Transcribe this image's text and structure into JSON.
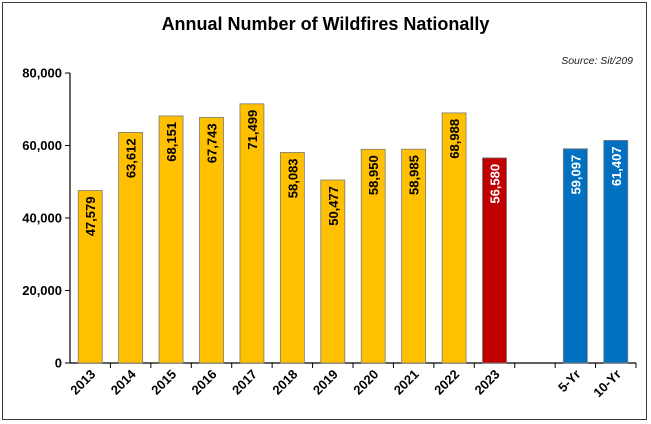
{
  "chart_data": {
    "type": "bar",
    "title": "Annual Number of Wildfires Nationally",
    "source_note": "Source: Sit/209",
    "xlabel": "",
    "ylabel": "",
    "ylim": [
      0,
      80000
    ],
    "yticks": [
      0,
      20000,
      40000,
      60000,
      80000
    ],
    "ytick_labels": [
      "0",
      "20,000",
      "40,000",
      "60,000",
      "80,000"
    ],
    "grid": false,
    "categories": [
      "2013",
      "2014",
      "2015",
      "2016",
      "2017",
      "2018",
      "2019",
      "2020",
      "2021",
      "2022",
      "2023",
      "",
      "5-Yr",
      "10-Yr"
    ],
    "values": [
      47579,
      63612,
      68151,
      67743,
      71499,
      58083,
      50477,
      58950,
      58985,
      68988,
      56580,
      null,
      59097,
      61407
    ],
    "value_labels": [
      "47,579",
      "63,612",
      "68,151",
      "67,743",
      "71,499",
      "58,083",
      "50,477",
      "58,950",
      "58,985",
      "68,988",
      "56,580",
      "",
      "59,097",
      "61,407"
    ],
    "bar_colors": [
      "#FFC000",
      "#FFC000",
      "#FFC000",
      "#FFC000",
      "#FFC000",
      "#FFC000",
      "#FFC000",
      "#FFC000",
      "#FFC000",
      "#FFC000",
      "#C00000",
      "",
      "#0070C0",
      "#0070C0"
    ],
    "label_colors": [
      "#000000",
      "#000000",
      "#000000",
      "#000000",
      "#000000",
      "#000000",
      "#000000",
      "#000000",
      "#000000",
      "#000000",
      "#FFFFFF",
      "",
      "#FFFFFF",
      "#FFFFFF"
    ]
  }
}
